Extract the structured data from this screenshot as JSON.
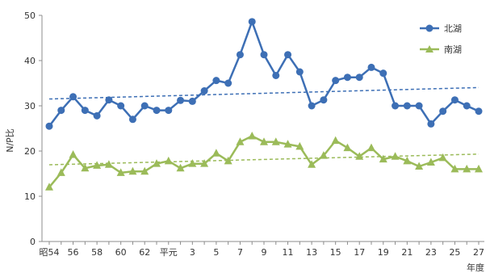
{
  "chart_data": {
    "type": "line",
    "ylabel": "N/P比",
    "xlabel": "年度",
    "ylim": [
      0,
      50
    ],
    "yticks": [
      0,
      10,
      20,
      30,
      40,
      50
    ],
    "grid": false,
    "legend_position": "top-right",
    "categories": [
      "昭54",
      "55",
      "56",
      "57",
      "58",
      "59",
      "60",
      "61",
      "62",
      "63",
      "平元",
      "2",
      "3",
      "4",
      "5",
      "6",
      "7",
      "8",
      "9",
      "10",
      "11",
      "12",
      "13",
      "14",
      "15",
      "16",
      "17",
      "18",
      "19",
      "20",
      "21",
      "22",
      "23",
      "24",
      "25",
      "26",
      "27"
    ],
    "tick_labels": [
      "昭54",
      "56",
      "58",
      "60",
      "62",
      "平元",
      "3",
      "5",
      "7",
      "9",
      "11",
      "13",
      "15",
      "17",
      "19",
      "21",
      "23",
      "25",
      "27"
    ],
    "series": [
      {
        "name": "北湖",
        "color": "#3d6fb5",
        "trend_color": "#3d6fb5",
        "marker": "circle",
        "values": [
          25.5,
          29,
          32,
          29,
          27.8,
          31.3,
          30,
          27,
          30,
          29,
          29,
          31.2,
          31,
          33.3,
          35.6,
          35,
          41.3,
          48.6,
          41.3,
          36.7,
          41.3,
          37.5,
          30,
          31.3,
          35.6,
          36.3,
          36.3,
          38.5,
          37.2,
          30,
          30,
          30,
          26,
          28.8,
          31.3,
          30,
          28.8
        ]
      },
      {
        "name": "南湖",
        "color": "#9bbb59",
        "trend_color": "#9bbb59",
        "marker": "triangle",
        "values": [
          12,
          15.2,
          19.2,
          16.2,
          16.8,
          17,
          15.2,
          15.5,
          15.5,
          17.2,
          17.8,
          16.2,
          17.2,
          17.2,
          19.5,
          17.8,
          22,
          23.3,
          22,
          22,
          21.5,
          21,
          17,
          19,
          22.3,
          20.7,
          18.8,
          20.7,
          18.2,
          18.8,
          17.8,
          16.6,
          17.5,
          18.5,
          16,
          16,
          16
        ]
      }
    ]
  }
}
